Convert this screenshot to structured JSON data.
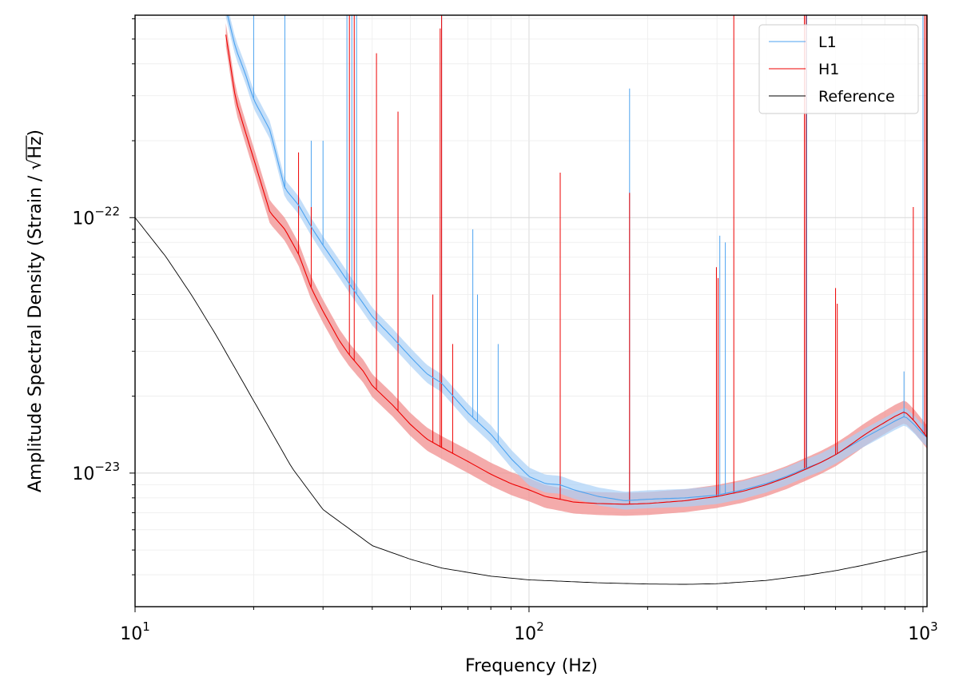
{
  "chart_data": {
    "type": "line",
    "title": "",
    "xlabel": "Frequency (Hz)",
    "ylabel_parts": {
      "prefix": "Amplitude Spectral Density (Strain / ",
      "radical": "√",
      "radicand": "Hz",
      "suffix": ")"
    },
    "x_scale": "log",
    "y_scale": "log",
    "xlim": [
      10,
      1024
    ],
    "ylim": [
      3e-24,
      6.2e-22
    ],
    "grid": true,
    "legend_position": "upper-right",
    "x_ticks": [
      {
        "value": 10,
        "base": "10",
        "exp": "1"
      },
      {
        "value": 100,
        "base": "10",
        "exp": "2"
      },
      {
        "value": 1000,
        "base": "10",
        "exp": "3"
      }
    ],
    "y_ticks": [
      {
        "value": 1e-23,
        "base": "10",
        "exp": "−23"
      },
      {
        "value": 1e-22,
        "base": "10",
        "exp": "−22"
      }
    ],
    "series": [
      {
        "name": "L1",
        "color": "#4da3f0",
        "band_color": "#a9d0f7",
        "band_width_dex": 0.035,
        "x": [
          17,
          18,
          19,
          20,
          22,
          24,
          26,
          28,
          30,
          33,
          35,
          38,
          40,
          45,
          50,
          55,
          60,
          70,
          80,
          90,
          100,
          110,
          120,
          130,
          150,
          175,
          200,
          250,
          300,
          350,
          400,
          450,
          500,
          550,
          600,
          650,
          700,
          750,
          800,
          850,
          900,
          950,
          1000,
          1024
        ],
        "y": [
          6.6e-22,
          4.6e-22,
          3.7e-22,
          2.9e-22,
          2.2e-22,
          1.3e-22,
          1.12e-22,
          9.2e-23,
          7.8e-23,
          6.3e-23,
          5.5e-23,
          4.6e-23,
          4.1e-23,
          3.4e-23,
          2.85e-23,
          2.45e-23,
          2.25e-23,
          1.72e-23,
          1.42e-23,
          1.14e-23,
          9.7e-24,
          9.1e-24,
          9e-24,
          8.6e-24,
          8.1e-24,
          7.8e-24,
          7.9e-24,
          8e-24,
          8.2e-24,
          8.6e-24,
          9.1e-24,
          9.7e-24,
          1.04e-23,
          1.1e-23,
          1.18e-23,
          1.27e-23,
          1.36e-23,
          1.44e-23,
          1.52e-23,
          1.6e-23,
          1.67e-23,
          1.55e-23,
          1.42e-23,
          1.38e-23
        ]
      },
      {
        "name": "H1",
        "color": "#ee0000",
        "band_color": "#f08f8f",
        "band_width_dex": 0.045,
        "x": [
          17,
          18,
          19,
          20,
          22,
          24,
          26,
          28,
          30,
          33,
          35,
          38,
          40,
          45,
          50,
          55,
          60,
          70,
          80,
          90,
          100,
          110,
          120,
          130,
          150,
          175,
          200,
          250,
          300,
          350,
          400,
          450,
          500,
          550,
          600,
          650,
          700,
          750,
          800,
          850,
          900,
          950,
          1000,
          1024
        ],
        "y": [
          5.2e-22,
          2.9e-22,
          2.2e-22,
          1.7e-22,
          1.05e-22,
          9e-23,
          7.2e-23,
          5.3e-23,
          4.3e-23,
          3.3e-23,
          2.9e-23,
          2.5e-23,
          2.2e-23,
          1.85e-23,
          1.55e-23,
          1.36e-23,
          1.26e-23,
          1.11e-23,
          9.9e-24,
          9.1e-24,
          8.6e-24,
          8.1e-24,
          7.9e-24,
          7.7e-24,
          7.6e-24,
          7.55e-24,
          7.6e-24,
          7.8e-24,
          8.1e-24,
          8.5e-24,
          9e-24,
          9.6e-24,
          1.03e-23,
          1.1e-23,
          1.18e-23,
          1.28e-23,
          1.39e-23,
          1.49e-23,
          1.58e-23,
          1.67e-23,
          1.74e-23,
          1.6e-23,
          1.45e-23,
          1.38e-23
        ]
      },
      {
        "name": "Reference",
        "color": "#000000",
        "band_color": "",
        "band_width_dex": 0,
        "x": [
          10,
          12,
          14,
          16,
          18,
          20,
          25,
          30,
          40,
          50,
          60,
          80,
          100,
          150,
          200,
          250,
          300,
          400,
          500,
          600,
          700,
          800,
          1024
        ],
        "y": [
          1e-22,
          7e-23,
          4.9e-23,
          3.5e-23,
          2.55e-23,
          1.92e-23,
          1.05e-23,
          7.2e-24,
          5.2e-24,
          4.6e-24,
          4.25e-24,
          3.95e-24,
          3.82e-24,
          3.72e-24,
          3.68e-24,
          3.67e-24,
          3.69e-24,
          3.8e-24,
          3.97e-24,
          4.15e-24,
          4.35e-24,
          4.55e-24,
          4.95e-24
        ]
      }
    ],
    "spikes": {
      "L1": [
        {
          "f": 20,
          "peak": 1e-21
        },
        {
          "f": 24,
          "peak": 1e-21
        },
        {
          "f": 28,
          "peak": 2e-22
        },
        {
          "f": 30,
          "peak": 2e-22
        },
        {
          "f": 34.5,
          "peak": 1e-21
        },
        {
          "f": 35.5,
          "peak": 1e-21
        },
        {
          "f": 36.5,
          "peak": 1e-21
        },
        {
          "f": 60,
          "peak": 1e-21
        },
        {
          "f": 72,
          "peak": 9e-23
        },
        {
          "f": 74,
          "peak": 5e-23
        },
        {
          "f": 83.5,
          "peak": 3.2e-23
        },
        {
          "f": 180,
          "peak": 3.2e-22
        },
        {
          "f": 305,
          "peak": 8.5e-23
        },
        {
          "f": 315,
          "peak": 8e-23
        },
        {
          "f": 500,
          "peak": 1e-21
        },
        {
          "f": 507,
          "peak": 1e-21
        },
        {
          "f": 895,
          "peak": 2.5e-23
        },
        {
          "f": 1000,
          "peak": 1e-21
        }
      ],
      "H1": [
        {
          "f": 26,
          "peak": 1.8e-22
        },
        {
          "f": 28,
          "peak": 1.1e-22
        },
        {
          "f": 35,
          "peak": 1e-21
        },
        {
          "f": 36,
          "peak": 1e-21
        },
        {
          "f": 41,
          "peak": 4.4e-22
        },
        {
          "f": 46.5,
          "peak": 2.6e-22
        },
        {
          "f": 57,
          "peak": 5e-23
        },
        {
          "f": 59.5,
          "peak": 5.5e-22
        },
        {
          "f": 60,
          "peak": 1e-21
        },
        {
          "f": 64,
          "peak": 3.2e-23
        },
        {
          "f": 120,
          "peak": 1.5e-22
        },
        {
          "f": 180,
          "peak": 1.25e-22
        },
        {
          "f": 299,
          "peak": 6.4e-23
        },
        {
          "f": 302,
          "peak": 5.8e-23
        },
        {
          "f": 331,
          "peak": 1e-21
        },
        {
          "f": 500,
          "peak": 1e-21
        },
        {
          "f": 505,
          "peak": 1e-21
        },
        {
          "f": 600,
          "peak": 5.3e-23
        },
        {
          "f": 606,
          "peak": 4.6e-23
        },
        {
          "f": 945,
          "peak": 1.1e-22
        },
        {
          "f": 1010,
          "peak": 1e-21
        },
        {
          "f": 1020,
          "peak": 1e-21
        }
      ]
    }
  }
}
